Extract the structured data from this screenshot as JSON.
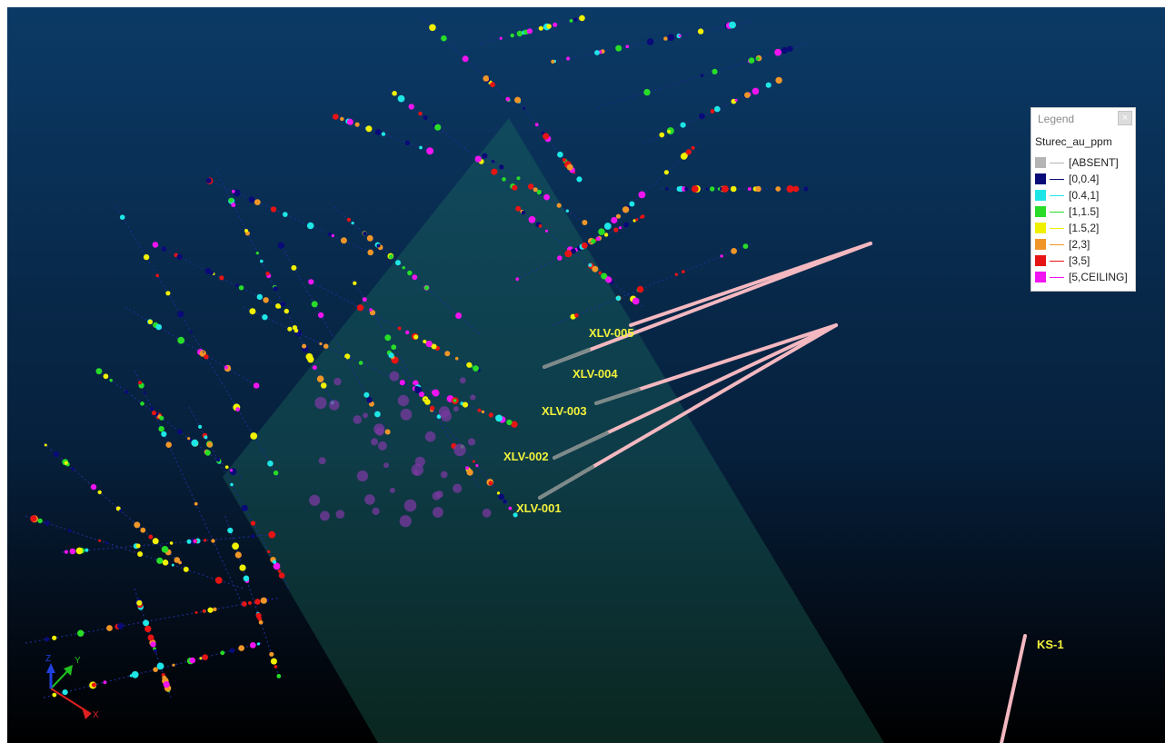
{
  "legend": {
    "title": "Legend",
    "close_label": "×",
    "attribute": "Sturec_au_ppm",
    "items": [
      {
        "label": "[ABSENT]",
        "color": "#b4b4b4"
      },
      {
        "label": "[0,0.4]",
        "color": "#0a0a78"
      },
      {
        "label": "[0.4,1]",
        "color": "#1ee6e6"
      },
      {
        "label": "[1,1.5]",
        "color": "#28dc28"
      },
      {
        "label": "[1.5,2]",
        "color": "#f0f000"
      },
      {
        "label": "[2,3]",
        "color": "#f09628"
      },
      {
        "label": "[3,5]",
        "color": "#e61414"
      },
      {
        "label": "[5,CEILING]",
        "color": "#f014f0"
      }
    ]
  },
  "drillholes": [
    {
      "id": "XLV-005"
    },
    {
      "id": "XLV-004"
    },
    {
      "id": "XLV-003"
    },
    {
      "id": "XLV-002"
    },
    {
      "id": "XLV-001"
    },
    {
      "id": "KS-1"
    }
  ],
  "axes": {
    "x": "X",
    "y": "Y",
    "z": "Z"
  },
  "colors": {
    "drillhole_pink": "#f4b8c0",
    "label_yellow": "#f2f23c",
    "plane_teal": "#1e6e5a"
  }
}
